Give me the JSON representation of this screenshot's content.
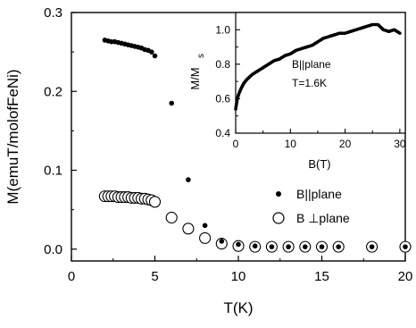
{
  "chart_data": [
    {
      "type": "scatter",
      "xlabel": "T(K)",
      "ylabel": "M(emuT/molofFeNi)",
      "xlim": [
        0,
        20
      ],
      "ylim": [
        -0.015,
        0.3
      ],
      "xticks": [
        "0",
        "5",
        "10",
        "15",
        "20"
      ],
      "yticks": [
        "0.0",
        "0.1",
        "0.2",
        "0.3"
      ],
      "legend_position": "center-right",
      "series": [
        {
          "name": "B||plane",
          "marker": "filled-circle",
          "x": [
            2.0,
            2.2,
            2.4,
            2.6,
            2.8,
            3.0,
            3.2,
            3.4,
            3.6,
            3.8,
            4.0,
            4.2,
            4.4,
            4.6,
            4.8,
            5.0,
            6.0,
            7.0,
            8.0,
            9.0,
            10.0,
            11.0,
            12.0,
            13.0,
            14.0,
            15.0,
            16.0,
            18.0,
            20.0
          ],
          "y": [
            0.265,
            0.264,
            0.263,
            0.263,
            0.262,
            0.261,
            0.26,
            0.259,
            0.258,
            0.257,
            0.256,
            0.255,
            0.253,
            0.252,
            0.25,
            0.245,
            0.185,
            0.088,
            0.03,
            0.01,
            0.006,
            0.004,
            0.003,
            0.003,
            0.003,
            0.003,
            0.003,
            0.003,
            0.003
          ]
        },
        {
          "name": "B ⊥plane",
          "marker": "open-circle",
          "x": [
            2.0,
            2.2,
            2.4,
            2.6,
            2.8,
            3.0,
            3.2,
            3.4,
            3.6,
            3.8,
            4.0,
            4.2,
            4.4,
            4.6,
            4.8,
            5.0,
            6.0,
            7.0,
            8.0,
            9.0,
            10.0,
            11.0,
            12.0,
            13.0,
            14.0,
            15.0,
            16.0,
            18.0,
            20.0
          ],
          "y": [
            0.067,
            0.067,
            0.067,
            0.067,
            0.066,
            0.066,
            0.066,
            0.066,
            0.065,
            0.065,
            0.065,
            0.064,
            0.064,
            0.063,
            0.062,
            0.06,
            0.04,
            0.026,
            0.014,
            0.007,
            0.004,
            0.003,
            0.003,
            0.003,
            0.003,
            0.003,
            0.003,
            0.003,
            0.003
          ]
        }
      ]
    },
    {
      "type": "scatter",
      "xlabel": "B(T)",
      "ylabel": "M/M",
      "ylabel_subscript": "s",
      "xlim": [
        0,
        31
      ],
      "ylim": [
        0.4,
        1.1
      ],
      "xticks": [
        "0",
        "10",
        "20",
        "30"
      ],
      "yticks": [
        "0.4",
        "0.6",
        "0.8",
        "1.0"
      ],
      "annotations": [
        "B||plane",
        "T=1.6K"
      ],
      "series": [
        {
          "marker": "filled-circle-dense",
          "x": [
            0.0,
            0.3,
            0.6,
            1.0,
            1.5,
            2.0,
            3.0,
            4.0,
            5.0,
            6.0,
            7.0,
            8.0,
            9.0,
            10.0,
            11.0,
            12.0,
            13.0,
            14.0,
            15.0,
            16.0,
            17.0,
            18.0,
            19.0,
            20.0,
            21.0,
            22.0,
            23.0,
            24.0,
            25.0,
            26.0,
            27.0,
            28.0,
            29.0,
            30.0
          ],
          "y": [
            0.54,
            0.6,
            0.63,
            0.66,
            0.69,
            0.71,
            0.74,
            0.76,
            0.78,
            0.8,
            0.82,
            0.83,
            0.85,
            0.86,
            0.88,
            0.89,
            0.9,
            0.91,
            0.93,
            0.95,
            0.96,
            0.97,
            0.98,
            0.98,
            0.99,
            1.0,
            1.01,
            1.02,
            1.03,
            1.03,
            1.0,
            0.99,
            1.0,
            0.98
          ]
        }
      ]
    }
  ]
}
